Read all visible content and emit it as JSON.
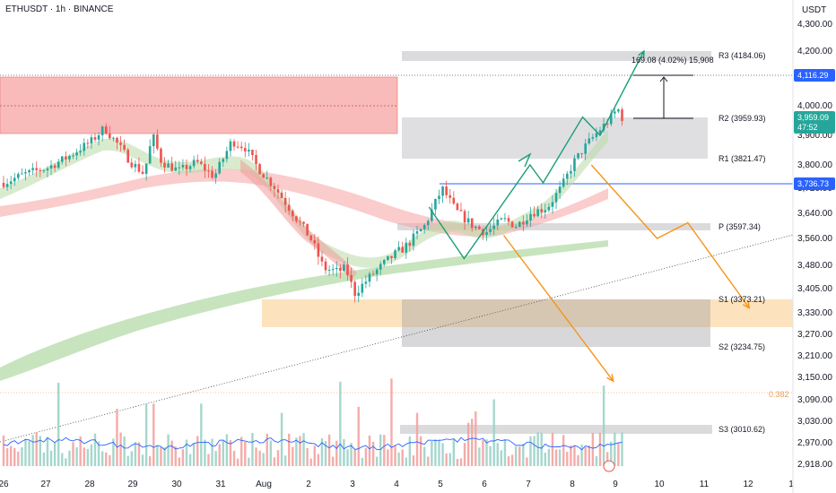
{
  "header": {
    "symbol_label": "ETHUSDT · 1h · BINANCE",
    "currency": "USDT"
  },
  "price_badges": {
    "last": "3,959.09",
    "countdown": "47:52",
    "level_a": "4,116.29",
    "level_b": "3,736.73"
  },
  "measure_label": "169.08 (4.02%) 15,908",
  "fib_label": "0.382",
  "colors": {
    "up": "#26a69a",
    "down": "#ef5350",
    "blue": "#2962ff",
    "orange": "#f7931a",
    "teal": "#1b9e77"
  },
  "chart_data": {
    "type": "candlestick",
    "title": "ETHUSDT · 1h · BINANCE",
    "y_axis_unit": "USDT",
    "yticks": [
      4300,
      4200,
      4000,
      3900,
      3800,
      3720,
      3640,
      3560,
      3480,
      3405,
      3330,
      3270,
      3210,
      3150,
      3090,
      3030,
      2970,
      2918
    ],
    "ytick_labels": [
      "4,300.00",
      "4,200.00",
      "4,000.00",
      "3,900.00",
      "3,800.00",
      "3,720.00",
      "3,640.00",
      "3,560.00",
      "3,480.00",
      "3,405.00",
      "3,330.00",
      "3,270.00",
      "3,210.00",
      "3,150.00",
      "3,090.00",
      "3,030.00",
      "2,970.00",
      "2,918.00"
    ],
    "xticks": [
      "26",
      "27",
      "28",
      "29",
      "30",
      "31",
      "Aug",
      "2",
      "3",
      "4",
      "5",
      "6",
      "7",
      "8",
      "9",
      "10",
      "11",
      "12",
      "1"
    ],
    "pivots": [
      {
        "name": "R3",
        "label": "R3 (4184.06)",
        "value": 4184.06
      },
      {
        "name": "R2",
        "label": "R2 (3959.93)",
        "value": 3959.93
      },
      {
        "name": "R1",
        "label": "R1 (3821.47)",
        "value": 3821.47
      },
      {
        "name": "P",
        "label": "P (3597.34)",
        "value": 3597.34
      },
      {
        "name": "S1",
        "label": "S1 (3373.21)",
        "value": 3373.21
      },
      {
        "name": "S2",
        "label": "S2 (3234.75)",
        "value": 3234.75
      },
      {
        "name": "S3",
        "label": "S3 (3010.62)",
        "value": 3010.62
      }
    ],
    "horizontal_lines": [
      4116.29,
      3736.73
    ],
    "last_price": 3959.09,
    "price_path": [
      {
        "day": 0.0,
        "price": 3740
      },
      {
        "day": 0.5,
        "price": 3770
      },
      {
        "day": 1.0,
        "price": 3790
      },
      {
        "day": 1.5,
        "price": 3830
      },
      {
        "day": 2.0,
        "price": 3880
      },
      {
        "day": 2.3,
        "price": 3925
      },
      {
        "day": 2.6,
        "price": 3870
      },
      {
        "day": 2.9,
        "price": 3810
      },
      {
        "day": 3.2,
        "price": 3770
      },
      {
        "day": 3.4,
        "price": 3900
      },
      {
        "day": 3.6,
        "price": 3810
      },
      {
        "day": 4.0,
        "price": 3780
      },
      {
        "day": 4.4,
        "price": 3810
      },
      {
        "day": 4.8,
        "price": 3760
      },
      {
        "day": 5.2,
        "price": 3880
      },
      {
        "day": 5.5,
        "price": 3860
      },
      {
        "day": 5.8,
        "price": 3790
      },
      {
        "day": 6.2,
        "price": 3720
      },
      {
        "day": 6.6,
        "price": 3640
      },
      {
        "day": 7.0,
        "price": 3560
      },
      {
        "day": 7.3,
        "price": 3470
      },
      {
        "day": 7.6,
        "price": 3460
      },
      {
        "day": 7.8,
        "price": 3470
      },
      {
        "day": 8.0,
        "price": 3390
      },
      {
        "day": 8.4,
        "price": 3450
      },
      {
        "day": 8.8,
        "price": 3500
      },
      {
        "day": 9.2,
        "price": 3540
      },
      {
        "day": 9.6,
        "price": 3600
      },
      {
        "day": 10.0,
        "price": 3720
      },
      {
        "day": 10.3,
        "price": 3650
      },
      {
        "day": 10.7,
        "price": 3600
      },
      {
        "day": 11.0,
        "price": 3580
      },
      {
        "day": 11.4,
        "price": 3620
      },
      {
        "day": 11.7,
        "price": 3600
      },
      {
        "day": 12.0,
        "price": 3640
      },
      {
        "day": 12.4,
        "price": 3660
      },
      {
        "day": 12.7,
        "price": 3720
      },
      {
        "day": 13.0,
        "price": 3810
      },
      {
        "day": 13.3,
        "price": 3870
      },
      {
        "day": 13.6,
        "price": 3920
      },
      {
        "day": 13.8,
        "price": 3950
      },
      {
        "day": 14.0,
        "price": 3990
      },
      {
        "day": 14.1,
        "price": 3959
      }
    ],
    "green_projection": [
      {
        "day": 9.7,
        "price": 3660
      },
      {
        "day": 10.5,
        "price": 3500
      },
      {
        "day": 12.0,
        "price": 3800
      },
      {
        "day": 12.3,
        "price": 3740
      },
      {
        "day": 13.2,
        "price": 3960
      },
      {
        "day": 13.6,
        "price": 3900
      },
      {
        "day": 14.6,
        "price": 4200
      }
    ],
    "orange_projection_a": [
      {
        "day": 13.4,
        "price": 3800
      },
      {
        "day": 14.9,
        "price": 3560
      },
      {
        "day": 15.6,
        "price": 3610
      },
      {
        "day": 17.0,
        "price": 3345
      }
    ],
    "orange_projection_b": [
      {
        "day": 11.4,
        "price": 3570
      },
      {
        "day": 13.9,
        "price": 3140
      }
    ],
    "volume_avg_line": true
  }
}
